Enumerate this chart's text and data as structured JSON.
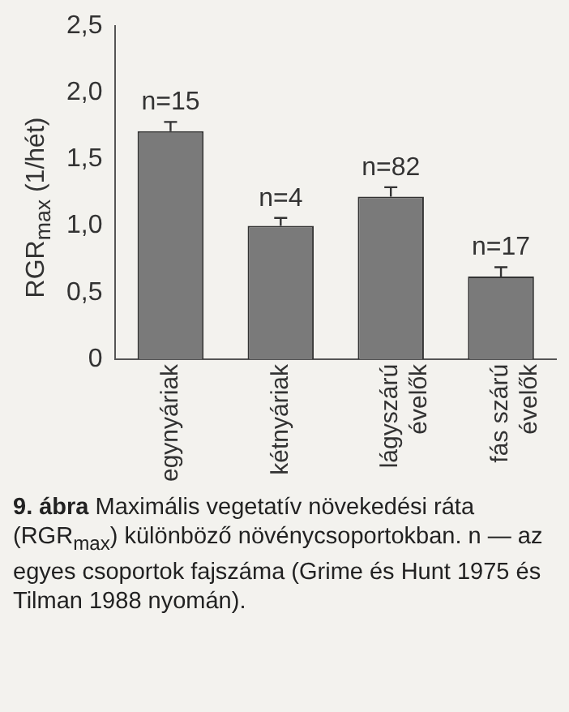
{
  "chart_data": {
    "type": "bar",
    "ylabel": "RGR$_{max}$ (1/hét)",
    "categories": [
      "egynyáriak",
      "kétnyáriak",
      "lágyszárú\névelők",
      "fás szárú\névelők"
    ],
    "values": [
      1.71,
      1.0,
      1.22,
      0.62
    ],
    "errors": [
      [
        1.71,
        1.78
      ],
      [
        1.0,
        1.06
      ],
      [
        1.22,
        1.29
      ],
      [
        0.62,
        0.69
      ]
    ],
    "color": "#7a7a7a",
    "ylim": [
      0,
      2.5
    ],
    "yticks": [
      0,
      {
        "value": 0.5,
        "label": "0,5"
      },
      {
        "value": 1,
        "label": "1,0"
      },
      {
        "value": 1.5,
        "label": "1,5"
      },
      {
        "value": 2,
        "label": "2,0"
      },
      {
        "value": 2.5,
        "label": "2,5"
      }
    ],
    "grid": false,
    "legend": false,
    "annotations": [
      "n=15",
      "n=4",
      "n=82",
      "n=17",
      "9. ábra",
      "Maximális vegetatív növekedési ráta (RGR$_{max}$) különböző növénycsoportokban. n — az egyes csoportok fajszáma (Grime és Hunt 1975 és Tilman 1988 nyomán)."
    ]
  }
}
